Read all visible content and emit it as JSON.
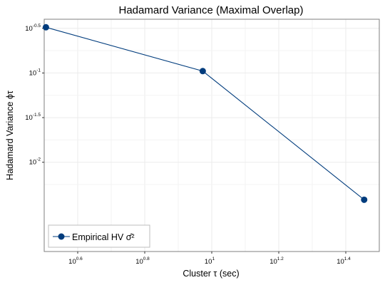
{
  "chart_data": {
    "type": "line",
    "title": "Hadamard Variance (Maximal Overlap)",
    "xlabel": "Cluster  τ (sec)",
    "ylabel": "Hadamard Variance  ϕτ",
    "x_scale": "log10",
    "y_scale": "log10",
    "xlim": [
      0.5,
      1.5
    ],
    "ylim": [
      0.001,
      0.4
    ],
    "x_ticks": [
      {
        "base": "10",
        "exp": "0.6",
        "value": 3.981
      },
      {
        "base": "10",
        "exp": "0.8",
        "value": 6.31
      },
      {
        "base": "10",
        "exp": "1",
        "value": 10
      },
      {
        "base": "10",
        "exp": "1.2",
        "value": 15.85
      },
      {
        "base": "10",
        "exp": "1.4",
        "value": 25.12
      }
    ],
    "y_ticks": [
      {
        "base": "10",
        "exp": "-0.5",
        "value": 0.3162
      },
      {
        "base": "10",
        "exp": "-1",
        "value": 0.1
      },
      {
        "base": "10",
        "exp": "-1.5",
        "value": 0.03162
      },
      {
        "base": "10",
        "exp": "-2",
        "value": 0.01
      }
    ],
    "series": [
      {
        "name": "Empirical HV  σ̂²",
        "x": [
          3.2,
          9.4,
          28.5
        ],
        "y": [
          0.325,
          0.105,
          0.0038
        ],
        "color": "#003c7d"
      }
    ],
    "grid": true,
    "legend_position": "bottom-left",
    "colors": {
      "series": "#003c7d",
      "panel_border": "#7f7f7f",
      "grid": "#ebebeb"
    }
  }
}
